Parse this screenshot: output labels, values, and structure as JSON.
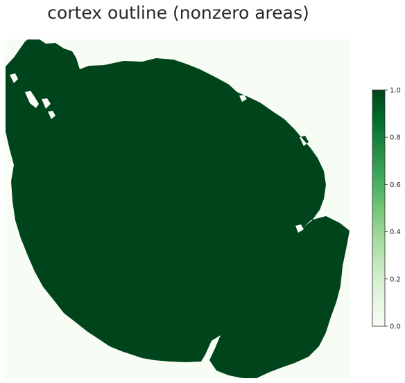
{
  "chart_data": {
    "type": "heatmap",
    "title": "cortex outline (nonzero areas)",
    "xlabel": "",
    "ylabel": "",
    "grid": false,
    "value_range": [
      0.0,
      1.0
    ],
    "colormap": "Greens",
    "colormap_stops": [
      "#f7fcf5",
      "#e5f5e0",
      "#c7e9c0",
      "#a1d99b",
      "#74c476",
      "#41ab5d",
      "#238b45",
      "#006d2c",
      "#00441b"
    ],
    "region_value": 1.0,
    "background_value": 0.0,
    "colorbar": {
      "position": "right",
      "ticks": [
        {
          "value": 0.0,
          "label": "0.0"
        },
        {
          "value": 0.2,
          "label": "0.2"
        },
        {
          "value": 0.4,
          "label": "0.4"
        },
        {
          "value": 0.6,
          "label": "0.6"
        },
        {
          "value": 0.8,
          "label": "0.8"
        },
        {
          "value": 1.0,
          "label": "1.0"
        }
      ]
    }
  }
}
